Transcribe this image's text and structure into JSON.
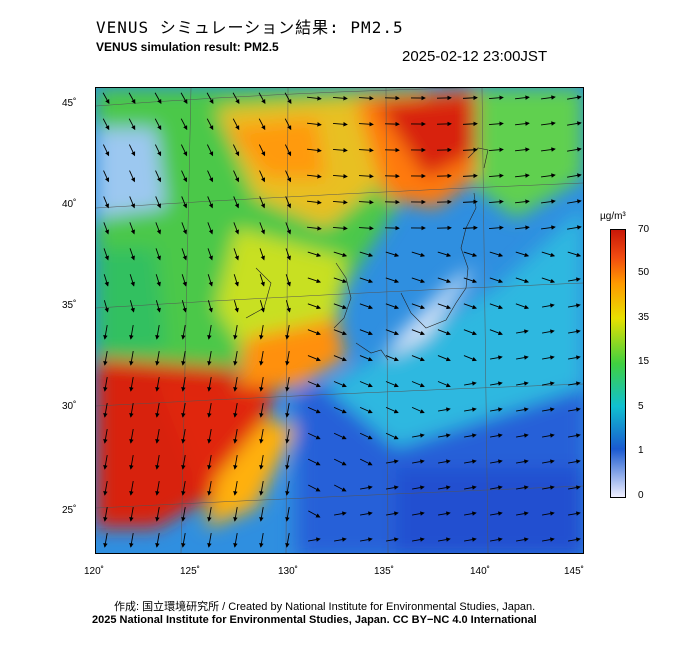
{
  "header": {
    "title_jp": "VENUS シミュレーション結果: PM2.5",
    "title_en": "VENUS simulation result: PM2.5",
    "timestamp": "2025-02-12 23:00JST"
  },
  "map": {
    "lon_ticks": [
      "120˚",
      "125˚",
      "130˚",
      "135˚",
      "140˚",
      "145˚"
    ],
    "lat_ticks": [
      "45˚",
      "40˚",
      "35˚",
      "30˚",
      "25˚"
    ],
    "ocean_color": "#3aa0e0"
  },
  "colorbar": {
    "unit": "µg/m³",
    "labels": [
      "70",
      "50",
      "35",
      "15",
      "5",
      "1",
      "0"
    ],
    "colors": [
      "#d62510",
      "#ff8a00",
      "#f2e600",
      "#6ed63a",
      "#18c8b4",
      "#1e6ad8",
      "#e8e8f8"
    ]
  },
  "footer": {
    "credit_jp_en": "作成: 国立環境研究所 / Created by National Institute for Environmental Studies, Japan.",
    "copyright": "2025 National Institute for Environmental Studies, Japan. CC BY−NC 4.0 International"
  }
}
